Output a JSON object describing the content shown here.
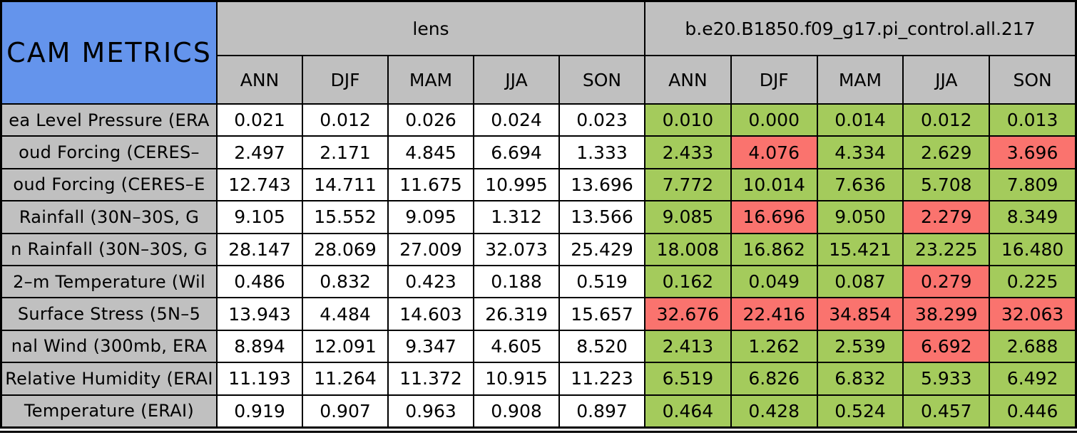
{
  "chart_data": {
    "type": "table",
    "title": "CAM METRICS",
    "column_groups": [
      {
        "label": "lens",
        "seasons": [
          "ANN",
          "DJF",
          "MAM",
          "JJA",
          "SON"
        ]
      },
      {
        "label": "b.e20.B1850.f09_g17.pi_control.all.217",
        "seasons": [
          "ANN",
          "DJF",
          "MAM",
          "JJA",
          "SON"
        ]
      }
    ],
    "rows": [
      {
        "label": "ea Level Pressure (ERA",
        "lens_values": [
          "0.021",
          "0.012",
          "0.026",
          "0.024",
          "0.023"
        ],
        "case_values": [
          "0.010",
          "0.000",
          "0.014",
          "0.012",
          "0.013"
        ],
        "case_colors": [
          "green",
          "green",
          "green",
          "green",
          "green"
        ]
      },
      {
        "label": "oud Forcing (CERES–",
        "lens_values": [
          "2.497",
          "2.171",
          "4.845",
          "6.694",
          "1.333"
        ],
        "case_values": [
          "2.433",
          "4.076",
          "4.334",
          "2.629",
          "3.696"
        ],
        "case_colors": [
          "green",
          "red",
          "green",
          "green",
          "red"
        ]
      },
      {
        "label": "oud Forcing (CERES–E",
        "lens_values": [
          "12.743",
          "14.711",
          "11.675",
          "10.995",
          "13.696"
        ],
        "case_values": [
          "7.772",
          "10.014",
          "7.636",
          "5.708",
          "7.809"
        ],
        "case_colors": [
          "green",
          "green",
          "green",
          "green",
          "green"
        ]
      },
      {
        "label": "Rainfall (30N–30S, G",
        "lens_values": [
          "9.105",
          "15.552",
          "9.095",
          "1.312",
          "13.566"
        ],
        "case_values": [
          "9.085",
          "16.696",
          "9.050",
          "2.279",
          "8.349"
        ],
        "case_colors": [
          "green",
          "red",
          "green",
          "red",
          "green"
        ]
      },
      {
        "label": "n Rainfall (30N–30S, G",
        "lens_values": [
          "28.147",
          "28.069",
          "27.009",
          "32.073",
          "25.429"
        ],
        "case_values": [
          "18.008",
          "16.862",
          "15.421",
          "23.225",
          "16.480"
        ],
        "case_colors": [
          "green",
          "green",
          "green",
          "green",
          "green"
        ]
      },
      {
        "label": "2–m Temperature (Wil",
        "lens_values": [
          "0.486",
          "0.832",
          "0.423",
          "0.188",
          "0.519"
        ],
        "case_values": [
          "0.162",
          "0.049",
          "0.087",
          "0.279",
          "0.225"
        ],
        "case_colors": [
          "green",
          "green",
          "green",
          "red",
          "green"
        ]
      },
      {
        "label": "Surface Stress (5N–5",
        "lens_values": [
          "13.943",
          "4.484",
          "14.603",
          "26.319",
          "15.657"
        ],
        "case_values": [
          "32.676",
          "22.416",
          "34.854",
          "38.299",
          "32.063"
        ],
        "case_colors": [
          "red",
          "red",
          "red",
          "red",
          "red"
        ]
      },
      {
        "label": "nal Wind (300mb, ERA",
        "lens_values": [
          "8.894",
          "12.091",
          "9.347",
          "4.605",
          "8.520"
        ],
        "case_values": [
          "2.413",
          "1.262",
          "2.539",
          "6.692",
          "2.688"
        ],
        "case_colors": [
          "green",
          "green",
          "green",
          "red",
          "green"
        ]
      },
      {
        "label": "Relative Humidity (ERAI",
        "lens_values": [
          "11.193",
          "11.264",
          "11.372",
          "10.915",
          "11.223"
        ],
        "case_values": [
          "6.519",
          "6.826",
          "6.832",
          "5.933",
          "6.492"
        ],
        "case_colors": [
          "green",
          "green",
          "green",
          "green",
          "green"
        ]
      },
      {
        "label": "Temperature (ERAI)",
        "lens_values": [
          "0.919",
          "0.907",
          "0.963",
          "0.908",
          "0.897"
        ],
        "case_values": [
          "0.464",
          "0.428",
          "0.524",
          "0.457",
          "0.446"
        ],
        "case_colors": [
          "green",
          "green",
          "green",
          "green",
          "green"
        ]
      }
    ]
  },
  "colors": {
    "title_bg": "#6494EC",
    "header_bg": "#C0C0C0",
    "label_bg": "#C0C0C0",
    "cell_bg": "#FFFFFF",
    "green": "#A4CB5C",
    "red": "#FA736E",
    "border": "#000000"
  }
}
